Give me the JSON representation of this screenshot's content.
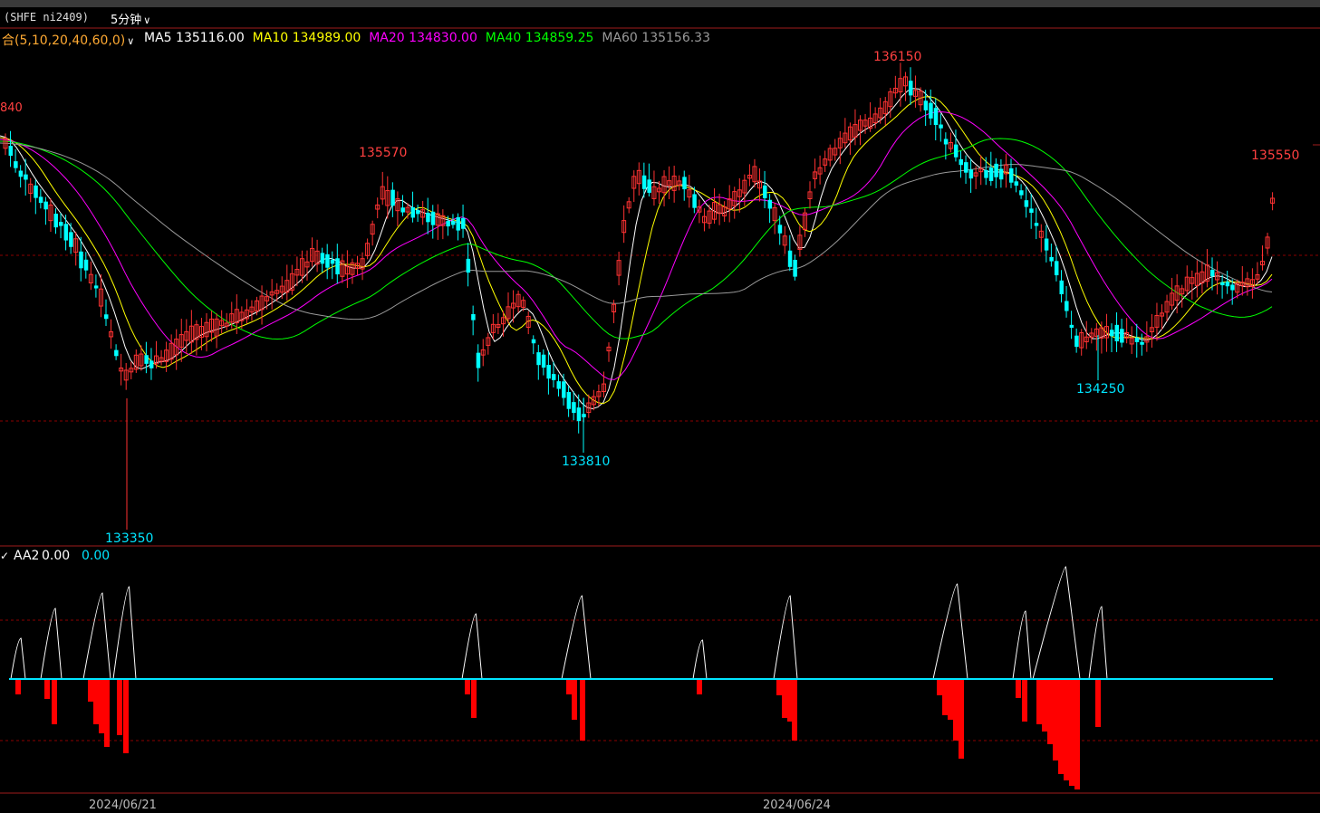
{
  "header": {
    "symbol": "(SHFE ni2409)",
    "period": "5分钟",
    "period_chevron_icon": "chevron-down-icon"
  },
  "ma_legend": {
    "group_label": "合(5,10,20,40,60,0)",
    "group_chevron_icon": "chevron-down-icon",
    "items": [
      {
        "label": "MA5",
        "value": "135116.00",
        "color": "#ffffff"
      },
      {
        "label": "MA10",
        "value": "134989.00",
        "color": "#ffff00"
      },
      {
        "label": "MA20",
        "value": "134830.00",
        "color": "#ff00ff"
      },
      {
        "label": "MA40",
        "value": "134859.25",
        "color": "#00ff00"
      },
      {
        "label": "MA60",
        "value": "135156.33",
        "color": "#999999"
      }
    ]
  },
  "price_labels": {
    "left_high": "840",
    "high_1": "135570",
    "high_2": "136150",
    "high_3": "135550",
    "low_1": "133350",
    "low_2": "133810",
    "low_3": "134250"
  },
  "indicator": {
    "label": "AA2",
    "value": "0.00",
    "value2": "0.00"
  },
  "dates": [
    "2024/06/21",
    "2024/06/24"
  ],
  "colors": {
    "up": "#ff3232",
    "down": "#00ffff",
    "grid": "#8b0000",
    "frame": "#a01c1c",
    "zero_line": "#00e5ff",
    "hist": "#ff0000"
  }
}
